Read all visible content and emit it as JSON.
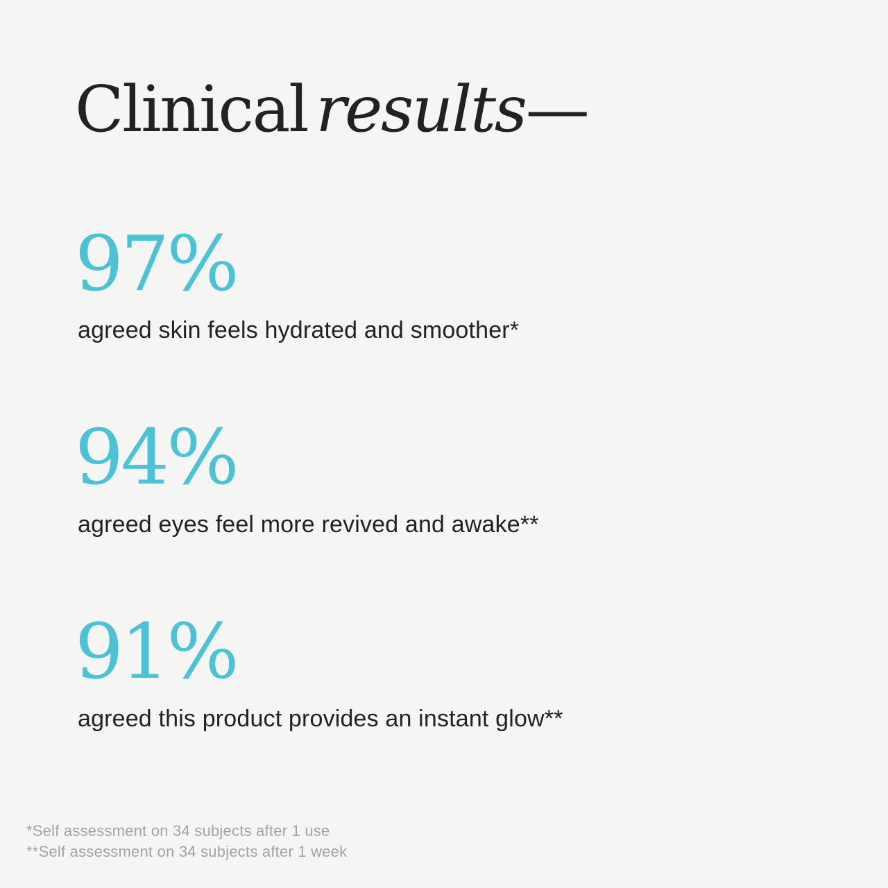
{
  "page": {
    "colors": {
      "background": "#f5f5f4",
      "text": "#222222",
      "accent": "#4bc2d6",
      "footnote": "#a3a3a3"
    }
  },
  "title": {
    "regular": "Clinical",
    "italic": "results",
    "dash": "—"
  },
  "stats": [
    {
      "value": "97%",
      "description": "agreed skin feels hydrated and smoother*"
    },
    {
      "value": "94%",
      "description": "agreed eyes feel more revived and awake**"
    },
    {
      "value": "91%",
      "description": "agreed this product provides an instant glow**"
    }
  ],
  "footnotes": [
    "*Self assessment on 34 subjects after 1 use",
    "**Self assessment on 34 subjects after 1 week"
  ]
}
